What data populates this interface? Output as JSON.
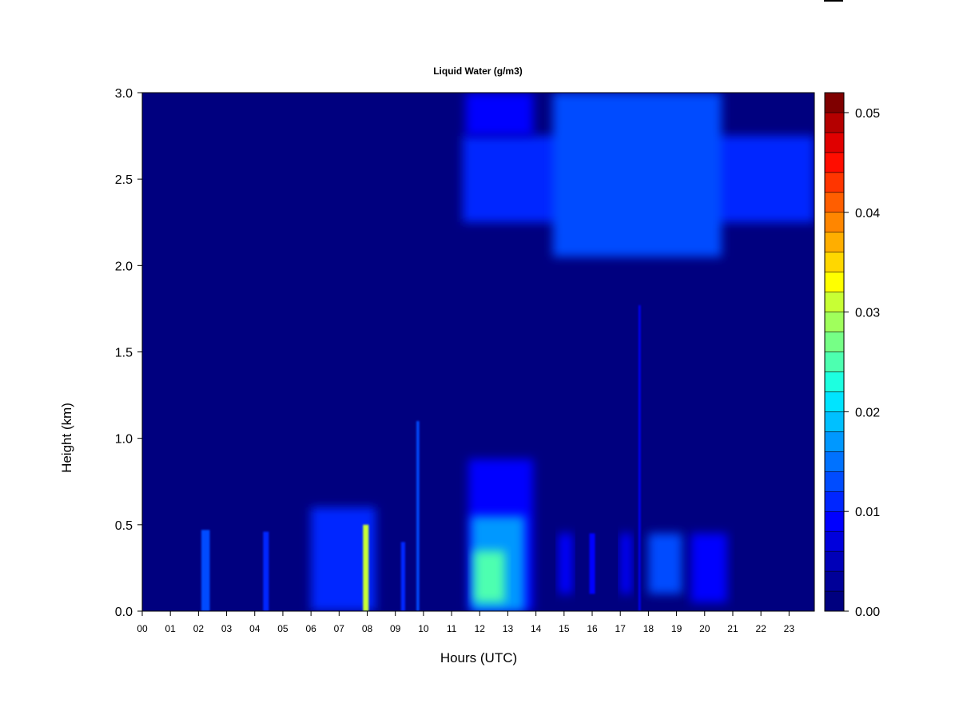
{
  "chart_data": {
    "type": "heatmap",
    "title": "Liquid Water (g/m3)",
    "xlabel": "Hours (UTC)",
    "ylabel": "Height (km)",
    "xlim": [
      0,
      23.9
    ],
    "ylim": [
      0,
      3.0
    ],
    "x_ticks": [
      "00",
      "01",
      "02",
      "03",
      "04",
      "05",
      "06",
      "07",
      "08",
      "09",
      "10",
      "11",
      "12",
      "13",
      "14",
      "15",
      "16",
      "17",
      "18",
      "19",
      "20",
      "21",
      "22",
      "23"
    ],
    "y_ticks": [
      "0.0",
      "0.5",
      "1.0",
      "1.5",
      "2.0",
      "2.5",
      "3.0"
    ],
    "colorbar": {
      "range": [
        0.0,
        0.052
      ],
      "ticks": [
        "0.00",
        "0.01",
        "0.02",
        "0.03",
        "0.04",
        "0.05"
      ],
      "colors": [
        "#00007f",
        "#000098",
        "#0000b8",
        "#0000dc",
        "#0000ff",
        "#0026ff",
        "#004cff",
        "#0072ff",
        "#0098ff",
        "#00c0ff",
        "#00e4ff",
        "#1dffe0",
        "#4dffb0",
        "#76ff86",
        "#a0ff5c",
        "#c8ff34",
        "#ffff00",
        "#ffd700",
        "#ffae00",
        "#ff8600",
        "#ff5e00",
        "#ff3500",
        "#ff0d00",
        "#e00000",
        "#b40000",
        "#7f0000"
      ]
    },
    "cloud_features": [
      {
        "x": [
          11.4,
          23.9
        ],
        "y": [
          2.25,
          2.75
        ],
        "value": 0.01
      },
      {
        "x": [
          11.5,
          13.9
        ],
        "y": [
          2.75,
          3.0
        ],
        "value": 0.009
      },
      {
        "x": [
          14.6,
          20.6
        ],
        "y": [
          2.05,
          3.0
        ],
        "value": 0.012
      },
      {
        "x": [
          11.6,
          13.9
        ],
        "y": [
          0.0,
          0.88
        ],
        "value": 0.009
      },
      {
        "x": [
          11.7,
          13.6
        ],
        "y": [
          0.0,
          0.55
        ],
        "value": 0.017
      },
      {
        "x": [
          11.8,
          12.9
        ],
        "y": [
          0.05,
          0.35
        ],
        "value": 0.025
      },
      {
        "x": [
          2.1,
          2.4
        ],
        "y": [
          0.0,
          0.47
        ],
        "value": 0.012
      },
      {
        "x": [
          4.3,
          4.5
        ],
        "y": [
          0.0,
          0.46
        ],
        "value": 0.01
      },
      {
        "x": [
          6.0,
          8.3
        ],
        "y": [
          0.0,
          0.6
        ],
        "value": 0.011
      },
      {
        "x": [
          7.85,
          8.05
        ],
        "y": [
          0.0,
          0.5
        ],
        "value": 0.03
      },
      {
        "x": [
          9.2,
          9.35
        ],
        "y": [
          0.0,
          0.4
        ],
        "value": 0.01
      },
      {
        "x": [
          9.75,
          9.85
        ],
        "y": [
          0.0,
          1.1
        ],
        "value": 0.012
      },
      {
        "x": [
          14.8,
          15.3
        ],
        "y": [
          0.1,
          0.45
        ],
        "value": 0.009
      },
      {
        "x": [
          15.9,
          16.1
        ],
        "y": [
          0.1,
          0.45
        ],
        "value": 0.008
      },
      {
        "x": [
          17.0,
          17.4
        ],
        "y": [
          0.1,
          0.45
        ],
        "value": 0.009
      },
      {
        "x": [
          17.65,
          17.72
        ],
        "y": [
          0.0,
          1.77
        ],
        "value": 0.008
      },
      {
        "x": [
          18.0,
          19.2
        ],
        "y": [
          0.1,
          0.45
        ],
        "value": 0.012
      },
      {
        "x": [
          19.5,
          20.8
        ],
        "y": [
          0.05,
          0.45
        ],
        "value": 0.009
      }
    ]
  }
}
